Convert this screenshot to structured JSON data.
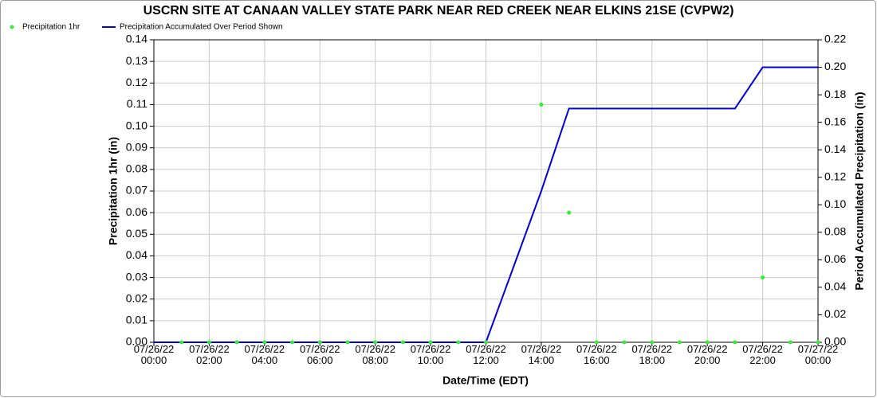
{
  "chart_data": {
    "type": "combo",
    "title": "USCRN SITE AT CANAAN VALLEY STATE PARK NEAR RED CREEK NEAR ELKINS 21SE (CVPW2)",
    "x_label": "Date/Time (EDT)",
    "y_label": "Precipitation 1hr (in)",
    "y2_label": "Period Accumulated Precipitation (in)",
    "x": [
      "07/26/22 00:00",
      "07/26/22 01:00",
      "07/26/22 02:00",
      "07/26/22 03:00",
      "07/26/22 04:00",
      "07/26/22 05:00",
      "07/26/22 06:00",
      "07/26/22 07:00",
      "07/26/22 08:00",
      "07/26/22 09:00",
      "07/26/22 10:00",
      "07/26/22 11:00",
      "07/26/22 12:00",
      "07/26/22 13:00",
      "07/26/22 14:00",
      "07/26/22 15:00",
      "07/26/22 16:00",
      "07/26/22 17:00",
      "07/26/22 18:00",
      "07/26/22 19:00",
      "07/26/22 20:00",
      "07/26/22 21:00",
      "07/26/22 22:00",
      "07/26/22 23:00",
      "07/27/22 00:00"
    ],
    "xticks": [
      "07/26/22 00:00",
      "07/26/22 02:00",
      "07/26/22 04:00",
      "07/26/22 06:00",
      "07/26/22 08:00",
      "07/26/22 10:00",
      "07/26/22 12:00",
      "07/26/22 14:00",
      "07/26/22 16:00",
      "07/26/22 18:00",
      "07/26/22 20:00",
      "07/26/22 22:00",
      "07/27/22 00:00"
    ],
    "series": [
      {
        "name": "Precipitation 1hr",
        "type": "scatter",
        "axis": "y",
        "color": "#33ee33",
        "values": [
          null,
          0,
          0,
          0,
          0,
          0,
          0,
          0,
          0,
          0,
          0,
          0,
          0,
          null,
          0.11,
          0.06,
          0,
          0,
          0,
          0,
          0,
          0,
          0.03,
          0,
          0
        ]
      },
      {
        "name": "Precipitation Accumulated Over Period Shown",
        "type": "line",
        "axis": "y2",
        "color": "#0000dd",
        "values": [
          0,
          0,
          0,
          0,
          0,
          0,
          0,
          0,
          0,
          0,
          0,
          0,
          0,
          0.055,
          0.11,
          0.17,
          0.17,
          0.17,
          0.17,
          0.17,
          0.17,
          0.17,
          0.2,
          0.2,
          0.2
        ]
      }
    ],
    "ylim": [
      0,
      0.14
    ],
    "yticks": [
      {
        "value": 0,
        "label": "0.00"
      },
      {
        "value": 0.01,
        "label": "0.01"
      },
      {
        "value": 0.02,
        "label": "0.02"
      },
      {
        "value": 0.03,
        "label": "0.03"
      },
      {
        "value": 0.04,
        "label": "0.04"
      },
      {
        "value": 0.05,
        "label": "0.05"
      },
      {
        "value": 0.06,
        "label": "0.06"
      },
      {
        "value": 0.07,
        "label": "0.07"
      },
      {
        "value": 0.08,
        "label": "0.08"
      },
      {
        "value": 0.09,
        "label": "0.09"
      },
      {
        "value": 0.1,
        "label": "0.10"
      },
      {
        "value": 0.11,
        "label": "0.11"
      },
      {
        "value": 0.12,
        "label": "0.12"
      },
      {
        "value": 0.13,
        "label": "0.13"
      },
      {
        "value": 0.14,
        "label": "0.14"
      }
    ],
    "y2lim": [
      0,
      0.22
    ],
    "y2ticks": [
      {
        "value": 0,
        "label": "0.00"
      },
      {
        "value": 0.02,
        "label": "0.02"
      },
      {
        "value": 0.04,
        "label": "0.04"
      },
      {
        "value": 0.06,
        "label": "0.06"
      },
      {
        "value": 0.08,
        "label": "0.08"
      },
      {
        "value": 0.1,
        "label": "0.10"
      },
      {
        "value": 0.12,
        "label": "0.12"
      },
      {
        "value": 0.14,
        "label": "0.14"
      },
      {
        "value": 0.16,
        "label": "0.16"
      },
      {
        "value": 0.18,
        "label": "0.18"
      },
      {
        "value": 0.2,
        "label": "0.20"
      },
      {
        "value": 0.22,
        "label": "0.22"
      }
    ],
    "grid": true
  }
}
